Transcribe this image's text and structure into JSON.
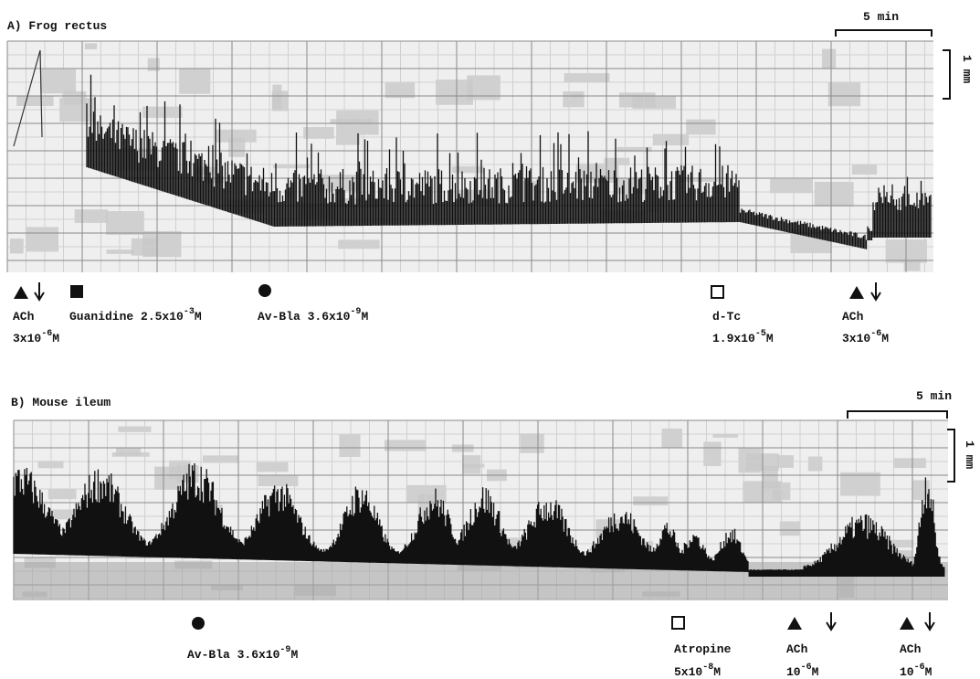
{
  "panels": [
    {
      "title": "A) Frog rectus",
      "time_scale": "5 min",
      "amplitude_scale": "1 mm",
      "annotations": [
        {
          "name": "ACh",
          "base": "3x10",
          "exp": "-6",
          "unit": "M"
        },
        {
          "base": "Guanidine 2.5x10",
          "exp": "-3",
          "unit": "M"
        },
        {
          "base": "Av-Bla 3.6x10",
          "exp": "-9",
          "unit": "M"
        },
        {
          "name": "d-Tc",
          "base": "1.9x10",
          "exp": "-5",
          "unit": "M"
        },
        {
          "name": "ACh",
          "base": "3x10",
          "exp": "-6",
          "unit": "M"
        }
      ]
    },
    {
      "title": "B) Mouse ileum",
      "time_scale": "5 min",
      "amplitude_scale": "1 mm",
      "annotations": [
        {
          "base": "Av-Bla 3.6x10",
          "exp": "-9",
          "unit": "M"
        },
        {
          "name": "Atropine",
          "base": "5x10",
          "exp": "-8",
          "unit": "M"
        },
        {
          "name": "ACh",
          "base": "10",
          "exp": "-6",
          "unit": "M"
        },
        {
          "name": "ACh",
          "base": "10",
          "exp": "-6",
          "unit": "M"
        }
      ]
    }
  ]
}
